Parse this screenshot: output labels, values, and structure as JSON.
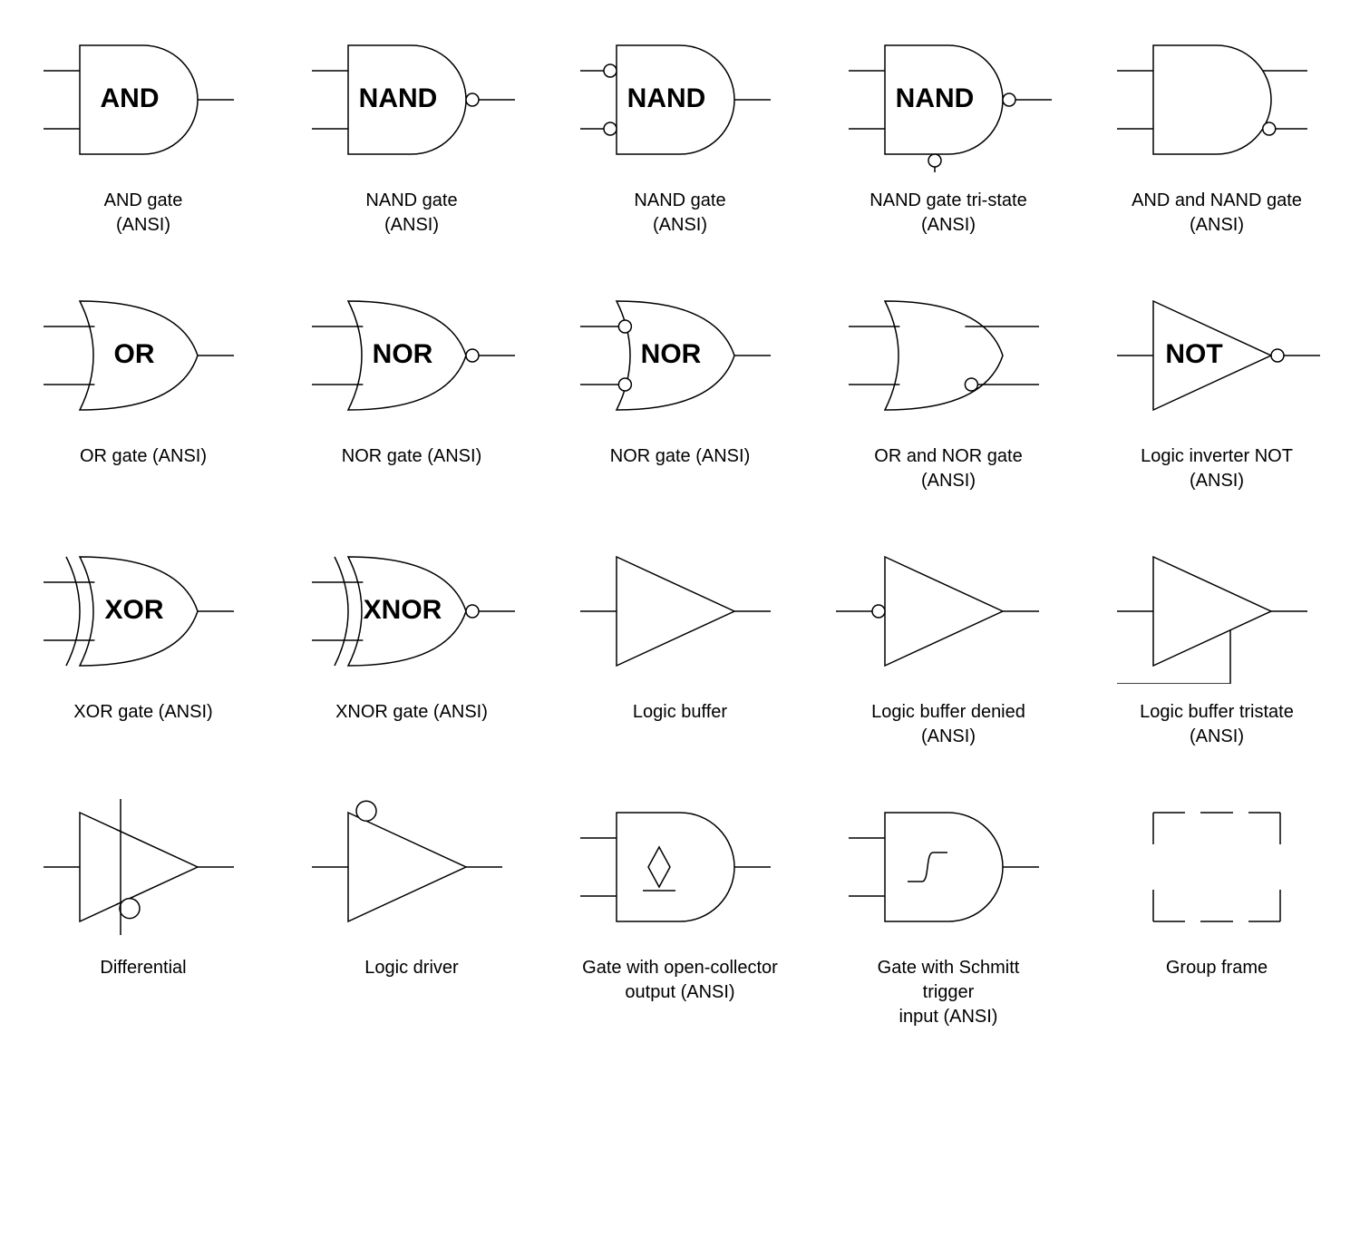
{
  "style": {
    "stroke": "#000000",
    "stroke_width": 1.5,
    "fill": "#ffffff",
    "bubble_radius": 7,
    "big_bubble_radius": 11,
    "text_font_size": 30,
    "text_font_weight": "bold",
    "caption_font_size": 20
  },
  "gates": [
    {
      "id": "and",
      "shape": "and",
      "label": "AND",
      "caption": "AND gate\n(ANSI)"
    },
    {
      "id": "nand",
      "shape": "and",
      "label": "NAND",
      "out_bubble": true,
      "caption": "NAND gate\n(ANSI)"
    },
    {
      "id": "nand-negin",
      "shape": "and",
      "label": "NAND",
      "in_bubbles": true,
      "caption": "NAND gate\n(ANSI)"
    },
    {
      "id": "nand-tristate",
      "shape": "and",
      "label": "NAND",
      "out_bubble": true,
      "bottom_bubble_line": true,
      "caption": "NAND gate tri-state\n(ANSI)"
    },
    {
      "id": "and-nand",
      "shape": "and",
      "dual_out": true,
      "out_bubble_lower": true,
      "caption": "AND and NAND gate\n(ANSI)"
    },
    {
      "id": "or",
      "shape": "or",
      "label": "OR",
      "caption": "OR gate (ANSI)"
    },
    {
      "id": "nor",
      "shape": "or",
      "label": "NOR",
      "out_bubble": true,
      "caption": "NOR gate (ANSI)"
    },
    {
      "id": "nor-negin",
      "shape": "or",
      "label": "NOR",
      "in_bubbles": true,
      "caption": "NOR gate (ANSI)"
    },
    {
      "id": "or-nor",
      "shape": "or",
      "dual_out": true,
      "out_bubble_lower": true,
      "caption": "OR and NOR gate\n(ANSI)"
    },
    {
      "id": "not",
      "shape": "tri",
      "label": "NOT",
      "single_in": true,
      "out_bubble": true,
      "caption": "Logic inverter NOT\n(ANSI)"
    },
    {
      "id": "xor",
      "shape": "xor",
      "label": "XOR",
      "caption": "XOR gate (ANSI)"
    },
    {
      "id": "xnor",
      "shape": "xor",
      "label": "XNOR",
      "out_bubble": true,
      "caption": "XNOR gate (ANSI)"
    },
    {
      "id": "buffer",
      "shape": "tri",
      "single_in": true,
      "caption": "Logic buffer"
    },
    {
      "id": "buffer-denied",
      "shape": "tri",
      "single_in": true,
      "in_bubble_single": true,
      "caption": "Logic buffer denied\n(ANSI)"
    },
    {
      "id": "buffer-tristate",
      "shape": "tri",
      "single_in": true,
      "bottom_line": true,
      "caption": "Logic buffer tristate\n(ANSI)"
    },
    {
      "id": "differential",
      "shape": "tri",
      "single_in": true,
      "out_bubble_below": true,
      "vertical_line": true,
      "caption": "Differential"
    },
    {
      "id": "driver",
      "shape": "tri",
      "single_in": true,
      "top_big_bubble": true,
      "caption": "Logic driver"
    },
    {
      "id": "open-collector",
      "shape": "and",
      "diamond": true,
      "caption": "Gate with open-collector\noutput (ANSI)"
    },
    {
      "id": "schmitt",
      "shape": "and",
      "schmitt": true,
      "caption": "Gate with Schmitt\ntrigger\ninput (ANSI)"
    },
    {
      "id": "group-frame",
      "shape": "frame",
      "caption": "Group frame"
    }
  ]
}
